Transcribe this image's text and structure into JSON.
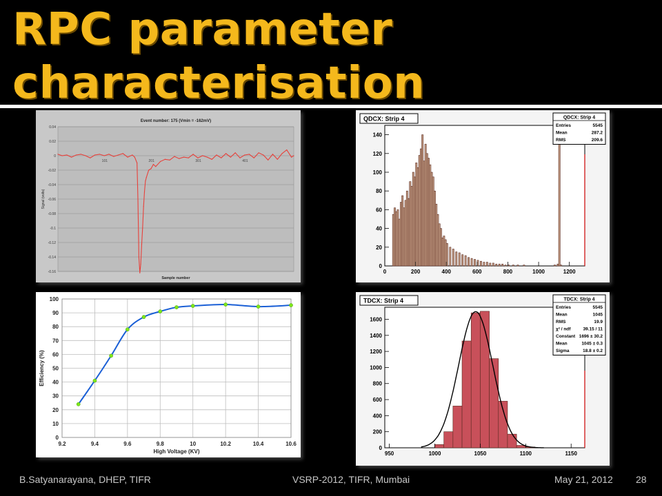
{
  "slide": {
    "title_line1": "RPC parameter",
    "title_line2": "characterisation",
    "title_color": "#f4b81c"
  },
  "footer": {
    "author": "B.Satyanarayana, DHEP, TIFR",
    "event": "VSRP-2012, TIFR, Mumbai",
    "date": "May 21, 2012",
    "page": "28"
  },
  "chart_data": [
    {
      "type": "line",
      "id": "signal",
      "title": "Event number: 175 (Vmin = -162mV)",
      "xlabel": "Sample number",
      "ylabel": "Signal (volts)",
      "xticks": [
        "101",
        "201",
        "301",
        "401"
      ],
      "ylim": [
        -0.16,
        0.04
      ],
      "yticks": [
        "0.04",
        "0.02",
        "0",
        "-0.02",
        "-0.04",
        "-0.06",
        "-0.08",
        "-0.1",
        "-0.12",
        "-0.14",
        "-0.16"
      ],
      "grid": true,
      "line_color": "#e8403a",
      "series": [
        {
          "x": [
            1,
            10,
            20,
            30,
            40,
            50,
            60,
            70,
            80,
            90,
            100,
            110,
            120,
            130,
            140,
            150,
            160,
            165,
            170,
            172,
            174,
            176,
            178,
            180,
            182,
            184,
            186,
            188,
            190,
            195,
            200,
            205,
            210,
            220,
            230,
            240,
            250,
            260,
            270,
            280,
            290,
            300,
            310,
            320,
            330,
            340,
            350,
            360,
            370,
            380,
            390,
            400,
            410,
            420,
            430,
            440,
            450,
            460,
            470,
            480,
            490,
            500,
            505
          ],
          "y": [
            0.002,
            0,
            0.001,
            -0.002,
            0.001,
            0.002,
            0,
            -0.003,
            0.001,
            0.002,
            0,
            0.002,
            -0.001,
            0.001,
            0.003,
            -0.002,
            0.001,
            -0.002,
            -0.01,
            -0.06,
            -0.14,
            -0.162,
            -0.15,
            -0.122,
            -0.1,
            -0.07,
            -0.05,
            -0.035,
            -0.03,
            -0.02,
            -0.018,
            -0.012,
            -0.015,
            -0.008,
            -0.005,
            -0.006,
            -0.001,
            -0.004,
            -0.002,
            -0.003,
            0.002,
            -0.003,
            0,
            -0.002,
            -0.005,
            0.001,
            -0.003,
            0.003,
            -0.002,
            0.004,
            -0.003,
            0.001,
            0.002,
            -0.003,
            0.004,
            0.001,
            -0.006,
            0.002,
            -0.005,
            0.003,
            0.008,
            -0.002,
            0
          ]
        }
      ]
    },
    {
      "type": "bar",
      "id": "qdcx",
      "title": "QDCX: Strip 4",
      "stats": {
        "title": "QDCX: Strip 4",
        "rows": [
          [
            "Entries",
            "5545"
          ],
          [
            "Mean",
            "287.2"
          ],
          [
            "RMS",
            "209.6"
          ]
        ]
      },
      "xlim": [
        0,
        1300
      ],
      "ylim": [
        0,
        150
      ],
      "xticks": [
        "0",
        "200",
        "400",
        "600",
        "800",
        "1000",
        "1200"
      ],
      "yticks": [
        "0",
        "20",
        "40",
        "60",
        "80",
        "100",
        "120",
        "140"
      ],
      "fill_color": "#c49d84",
      "bin_width": 10,
      "x": [
        50,
        60,
        70,
        80,
        90,
        100,
        110,
        120,
        130,
        140,
        150,
        160,
        170,
        180,
        190,
        200,
        210,
        220,
        230,
        240,
        250,
        260,
        270,
        280,
        290,
        300,
        310,
        320,
        330,
        340,
        350,
        360,
        370,
        380,
        390,
        400,
        420,
        440,
        460,
        480,
        500,
        520,
        540,
        560,
        580,
        600,
        620,
        640,
        660,
        680,
        700,
        720,
        740,
        760,
        780,
        800,
        830,
        860,
        900,
        950,
        1000,
        1050,
        1100,
        1120,
        1130,
        1140,
        1150
      ],
      "values": [
        55,
        62,
        58,
        60,
        50,
        68,
        75,
        62,
        70,
        80,
        72,
        90,
        85,
        100,
        95,
        110,
        105,
        118,
        125,
        140,
        112,
        130,
        120,
        115,
        108,
        100,
        95,
        80,
        66,
        55,
        45,
        40,
        30,
        32,
        28,
        24,
        20,
        18,
        15,
        14,
        12,
        11,
        9,
        8,
        7,
        6,
        5,
        4,
        4,
        3,
        3,
        2,
        2,
        2,
        1,
        1,
        1,
        1,
        1,
        0,
        0,
        0,
        1,
        2,
        130,
        1,
        0
      ]
    },
    {
      "type": "line",
      "id": "efficiency",
      "title": "",
      "xlabel": "High Voltage (KV)",
      "ylabel": "Efficiency (%)",
      "xlim": [
        9.2,
        10.6
      ],
      "ylim": [
        0,
        100
      ],
      "xticks": [
        "9.2",
        "9.4",
        "9.6",
        "9.8",
        "10",
        "10.2",
        "10.4",
        "10.6"
      ],
      "yticks": [
        "0",
        "10",
        "20",
        "30",
        "40",
        "50",
        "60",
        "70",
        "80",
        "90",
        "100"
      ],
      "grid": true,
      "line_color": "#1a5fd6",
      "marker_color": "#7ee81a",
      "series": [
        {
          "x": [
            9.3,
            9.4,
            9.5,
            9.6,
            9.7,
            9.8,
            9.9,
            10.0,
            10.2,
            10.4,
            10.6
          ],
          "y": [
            24,
            41,
            59,
            78,
            87,
            91,
            94,
            95,
            96,
            94.5,
            95.5
          ]
        }
      ]
    },
    {
      "type": "bar",
      "id": "tdcx",
      "title": "TDCX: Strip 4",
      "stats": {
        "title": "TDCX: Strip 4",
        "rows": [
          [
            "Entries",
            "5545"
          ],
          [
            "Mean",
            "1045"
          ],
          [
            "RMS",
            "19.9"
          ],
          [
            "χ² / ndf",
            "39.15 / 11"
          ],
          [
            "Constant",
            "1696 ± 30.2"
          ],
          [
            "Mean",
            "1045 ± 0.3"
          ],
          [
            "Sigma",
            "18.8 ± 0.2"
          ]
        ]
      },
      "xlim": [
        945,
        1165
      ],
      "ylim": [
        0,
        1750
      ],
      "xticks": [
        "950",
        "1000",
        "1050",
        "1100",
        "1150"
      ],
      "yticks": [
        "0",
        "200",
        "400",
        "600",
        "800",
        "1000",
        "1200",
        "1400",
        "1600"
      ],
      "fill_color": "#c8505a",
      "bin_width": 10,
      "x": [
        1000,
        1010,
        1020,
        1030,
        1040,
        1050,
        1060,
        1070,
        1080,
        1090,
        1100
      ],
      "values": [
        40,
        200,
        520,
        1330,
        1680,
        1700,
        1110,
        580,
        170,
        30,
        10
      ],
      "fit": {
        "constant": 1696,
        "mean": 1045,
        "sigma": 18.8
      }
    }
  ]
}
